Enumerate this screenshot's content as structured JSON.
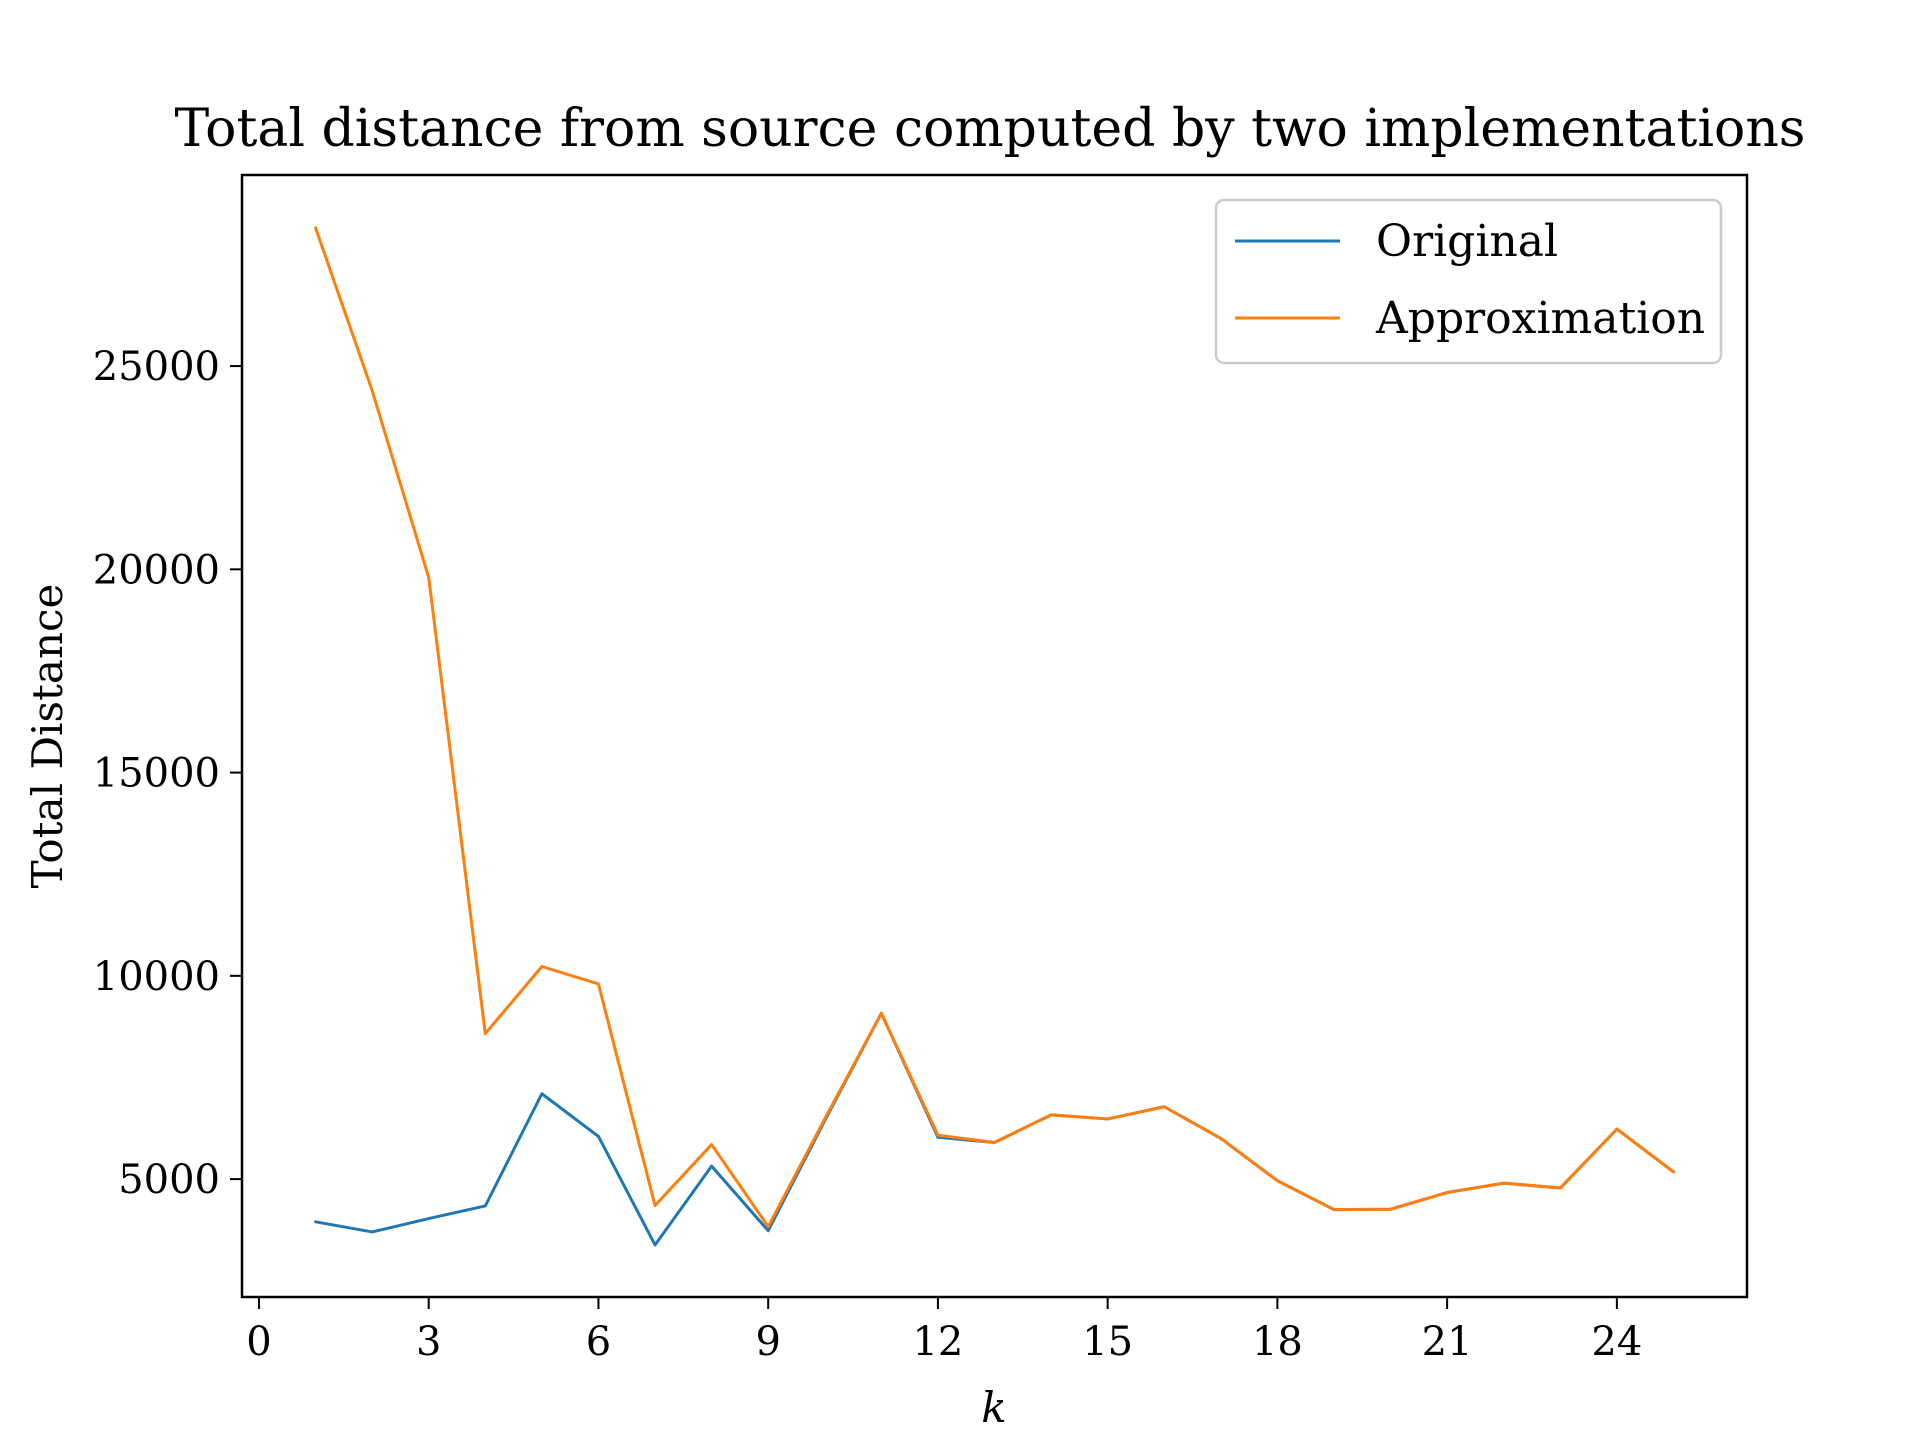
{
  "chart_data": {
    "type": "line",
    "title": "Total distance from source computed by two implementations",
    "xlabel": "k",
    "ylabel": "Total Distance",
    "xlim": [
      -0.3,
      26.3
    ],
    "ylim": [
      2100,
      29700
    ],
    "xticks": [
      0,
      3,
      6,
      9,
      12,
      15,
      18,
      21,
      24
    ],
    "yticks": [
      5000,
      10000,
      15000,
      20000,
      25000
    ],
    "grid": false,
    "legend": "top-right",
    "x": [
      1,
      2,
      3,
      4,
      5,
      6,
      7,
      8,
      9,
      10,
      11,
      12,
      13,
      14,
      15,
      16,
      17,
      18,
      19,
      20,
      21,
      22,
      23,
      24,
      25
    ],
    "series": [
      {
        "name": "Original",
        "color": "#1f77b4",
        "values": [
          3950,
          3700,
          4030,
          4340,
          7100,
          6050,
          3380,
          5320,
          3730,
          6440,
          9080,
          6030,
          5900,
          6580,
          6480,
          6780,
          6000,
          4960,
          4250,
          4260,
          4670,
          4900,
          4780,
          6230,
          5180
        ]
      },
      {
        "name": "Approximation",
        "color": "#ff7f0e",
        "values": [
          28400,
          24400,
          19800,
          8580,
          10230,
          9800,
          4350,
          5850,
          3830,
          6480,
          9080,
          6080,
          5900,
          6580,
          6480,
          6780,
          6000,
          4960,
          4250,
          4260,
          4670,
          4900,
          4780,
          6230,
          5180
        ]
      }
    ]
  }
}
